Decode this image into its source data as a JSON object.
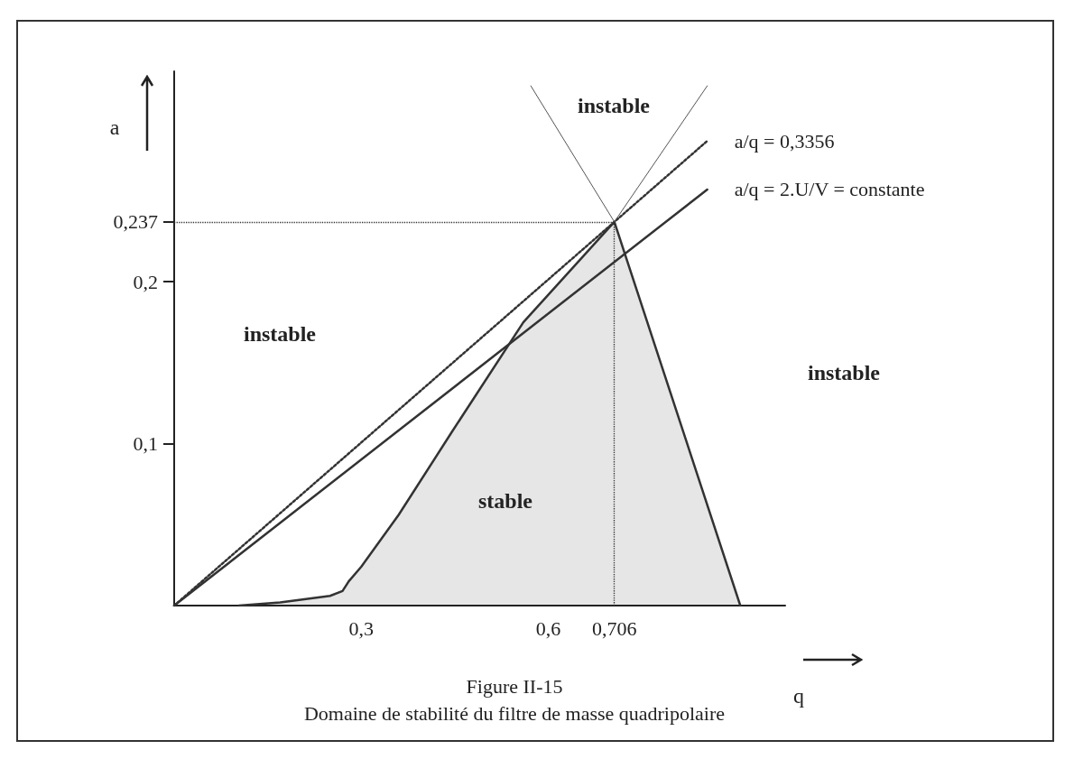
{
  "chart_data": {
    "type": "line",
    "title": "Figure II-15",
    "subtitle": "Domaine de stabilité du filtre de masse quadripolaire",
    "xlabel": "q",
    "ylabel": "a",
    "xlim": [
      0,
      0.98
    ],
    "ylim": [
      0,
      0.33
    ],
    "xticks": [
      {
        "value": 0.3,
        "label": "0,3"
      },
      {
        "value": 0.6,
        "label": "0,6"
      },
      {
        "value": 0.706,
        "label": "0,706"
      }
    ],
    "yticks": [
      {
        "value": 0.1,
        "label": "0,1"
      },
      {
        "value": 0.2,
        "label": "0,2"
      },
      {
        "value": 0.237,
        "label": "0,237"
      }
    ],
    "series": [
      {
        "type": "area",
        "color": "#333333",
        "x": [
          0.104,
          0.17,
          0.25,
          0.27,
          0.28,
          0.3,
          0.36,
          0.445,
          0.56,
          0.706,
          0.908
        ],
        "values": [
          0,
          0.002,
          0.006,
          0.009,
          0.015,
          0.024,
          0.056,
          0.107,
          0.175,
          0.237,
          0
        ]
      },
      {
        "name": "a/q = 0,3356",
        "color": "#333333",
        "line_style": "dotted",
        "x": [
          0,
          0.855
        ],
        "values": [
          0,
          0.287
        ]
      },
      {
        "name": "a/q = 2.U/V = constante",
        "color": "#333333",
        "x": [
          0,
          0.855
        ],
        "values": [
          0,
          0.257
        ]
      },
      {
        "color": "#555555",
        "x": [
          0.572,
          0.706,
          0.855
        ],
        "values": [
          0.321,
          0.237,
          0.321
        ]
      }
    ],
    "ref_lines": [
      {
        "axis": "y",
        "value": 0.237,
        "color": "#333333",
        "line_style": "dotted"
      },
      {
        "axis": "x",
        "value": 0.706,
        "color": "#333333",
        "line_style": "dotted"
      }
    ],
    "annotations": [
      "instable",
      "instable",
      "instable",
      "stable"
    ],
    "legend": false,
    "grid": false,
    "marker": "none",
    "line_style": "solid"
  }
}
